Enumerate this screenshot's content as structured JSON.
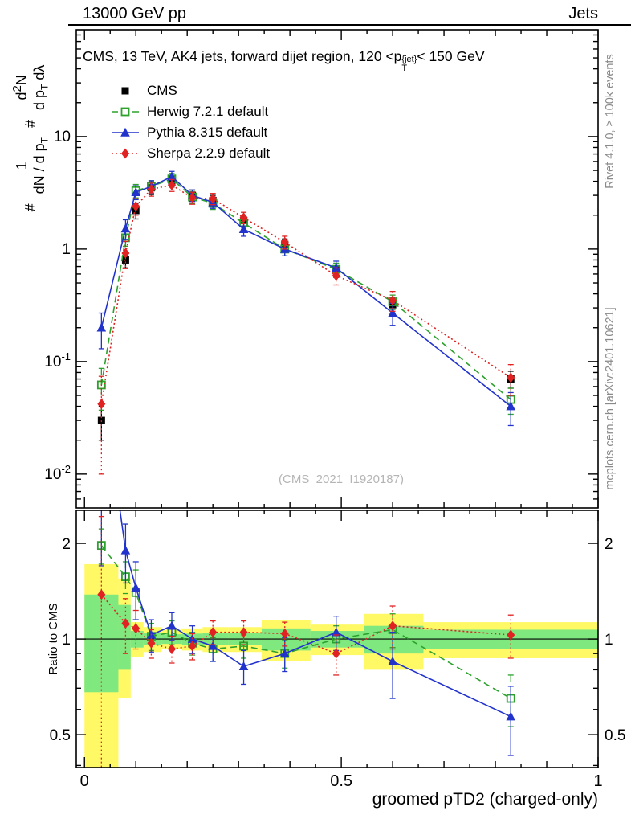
{
  "header": {
    "left": "13000 GeV pp",
    "right": "Jets"
  },
  "title": {
    "prefix": "CMS, 13 TeV, AK4 jets, forward dijet region, 120 <p",
    "sub": "T",
    "sup": "{jet}",
    "suffix": "< 150 GeV"
  },
  "watermark": "(CMS_2021_I1920187)",
  "side_notes": {
    "top_right": "Rivet 4.1.0, ≥ 100k events",
    "bottom_right": "mcplots.cern.ch [arXiv:2401.10621]"
  },
  "main_ylabel": {
    "hash1": "#",
    "frac1_num": "1",
    "frac1_den_pre": "dN / d p",
    "frac1_den_sub": "T",
    "hash2": "#",
    "frac2_num_pre": "d",
    "frac2_num_sup": "2",
    "frac2_num_post": "N",
    "frac2_den_pre": "d p",
    "frac2_den_sub": "T",
    "frac2_den_post": " dλ"
  },
  "ratio_ylabel": "Ratio to CMS",
  "xlabel": "groomed pTD2 (charged-only)",
  "chart_data": [
    {
      "type": "line",
      "panel": "main",
      "ylog": true,
      "xlim": [
        -0.016,
        1.0
      ],
      "ylim": [
        0.005,
        89
      ],
      "xticks": {
        "labels": [
          {
            "v": 0,
            "t": "0"
          },
          {
            "v": 0.5,
            "t": "0.5"
          },
          {
            "v": 1,
            "t": "1"
          }
        ],
        "minor_step": 0.05
      },
      "yticks": [
        {
          "v": 10,
          "t": "10"
        },
        {
          "v": 1,
          "t": "1"
        },
        {
          "v": 0.1,
          "t": "10",
          "sup": "-1"
        },
        {
          "v": 0.01,
          "t": "10",
          "sup": "-2"
        }
      ],
      "x": [
        0.033,
        0.08,
        0.1,
        0.13,
        0.17,
        0.21,
        0.25,
        0.31,
        0.39,
        0.49,
        0.6,
        0.83
      ],
      "series": [
        {
          "name": "CMS",
          "color": "#000000",
          "marker": "square",
          "line": "none",
          "y": [
            0.03,
            0.8,
            2.2,
            3.5,
            4.0,
            3.0,
            2.7,
            1.8,
            1.1,
            0.65,
            0.32,
            0.07
          ],
          "yerr": [
            0.01,
            0.12,
            0.35,
            0.45,
            0.45,
            0.35,
            0.3,
            0.2,
            0.13,
            0.09,
            0.05,
            0.012
          ]
        },
        {
          "name": "Herwig 7.2.1 default",
          "color": "#2ca12c",
          "marker": "open-square",
          "line": "dashed",
          "y": [
            0.062,
            1.26,
            3.3,
            3.6,
            4.2,
            2.9,
            2.55,
            1.7,
            1.0,
            0.66,
            0.34,
            0.046
          ],
          "yerr": [
            0.025,
            0.2,
            0.45,
            0.45,
            0.5,
            0.35,
            0.3,
            0.2,
            0.13,
            0.09,
            0.05,
            0.012
          ]
        },
        {
          "name": "Pythia 8.315 default",
          "color": "#2233cc",
          "marker": "triangle",
          "line": "solid",
          "y": [
            0.2,
            1.52,
            3.2,
            3.6,
            4.4,
            3.0,
            2.6,
            1.5,
            1.0,
            0.68,
            0.27,
            0.04
          ],
          "yerr": [
            0.07,
            0.3,
            0.45,
            0.45,
            0.5,
            0.35,
            0.3,
            0.2,
            0.13,
            0.1,
            0.06,
            0.013
          ]
        },
        {
          "name": "Sherpa 2.2.9 default",
          "color": "#e02222",
          "marker": "diamond",
          "line": "dotted",
          "y": [
            0.042,
            0.92,
            2.4,
            3.4,
            3.7,
            2.85,
            2.8,
            1.9,
            1.15,
            0.58,
            0.35,
            0.072
          ],
          "yerr": [
            0.032,
            0.25,
            0.4,
            0.45,
            0.45,
            0.35,
            0.32,
            0.22,
            0.15,
            0.1,
            0.07,
            0.022
          ]
        }
      ]
    },
    {
      "type": "line",
      "panel": "ratio",
      "ylog": true,
      "xlim": [
        -0.016,
        1.0
      ],
      "ylim": [
        0.394,
        2.54
      ],
      "ref_line": 1,
      "yticks": [
        {
          "v": 0.5,
          "t": "0.5"
        },
        {
          "v": 1,
          "t": "1"
        },
        {
          "v": 2,
          "t": "2"
        }
      ],
      "yticks_minor": [
        0.4,
        0.6,
        0.7,
        0.8,
        0.9
      ],
      "bands": {
        "edges": [
          0,
          0.066,
          0.09,
          0.115,
          0.15,
          0.19,
          0.23,
          0.28,
          0.345,
          0.44,
          0.545,
          0.66,
          1.0
        ],
        "yellow_color": "#fff966",
        "green_color": "#7fe87f",
        "yellow": [
          [
            0.395,
            1.72
          ],
          [
            0.65,
            1.55
          ],
          [
            0.88,
            1.13
          ],
          [
            0.91,
            1.09
          ],
          [
            0.93,
            1.07
          ],
          [
            0.92,
            1.08
          ],
          [
            0.91,
            1.09
          ],
          [
            0.91,
            1.09
          ],
          [
            0.85,
            1.15
          ],
          [
            0.89,
            1.11
          ],
          [
            0.8,
            1.2
          ],
          [
            0.87,
            1.13
          ]
        ],
        "green": [
          [
            0.68,
            1.38
          ],
          [
            0.8,
            1.28
          ],
          [
            0.94,
            1.06
          ],
          [
            0.955,
            1.045
          ],
          [
            0.965,
            1.035
          ],
          [
            0.96,
            1.04
          ],
          [
            0.955,
            1.045
          ],
          [
            0.955,
            1.045
          ],
          [
            0.92,
            1.08
          ],
          [
            0.94,
            1.06
          ],
          [
            0.9,
            1.1
          ],
          [
            0.93,
            1.07
          ]
        ]
      },
      "x": [
        0.033,
        0.08,
        0.1,
        0.13,
        0.17,
        0.21,
        0.25,
        0.31,
        0.39,
        0.49,
        0.6,
        0.83
      ],
      "series": [
        {
          "name": "Herwig 7.2.1 default",
          "color": "#2ca12c",
          "marker": "open-square",
          "line": "dashed",
          "y": [
            1.97,
            1.57,
            1.4,
            1.02,
            1.05,
            0.97,
            0.93,
            0.95,
            0.9,
            1.0,
            1.07,
            0.65
          ],
          "yerr": [
            0.25,
            0.18,
            0.25,
            0.1,
            0.09,
            0.08,
            0.08,
            0.08,
            0.09,
            0.1,
            0.13,
            0.12
          ]
        },
        {
          "name": "Pythia 8.315 default",
          "color": "#2233cc",
          "marker": "triangle",
          "line": "solid",
          "y": [
            6.7,
            1.9,
            1.45,
            1.03,
            1.1,
            1.0,
            0.95,
            0.82,
            0.9,
            1.05,
            0.85,
            0.57
          ],
          "yerr": [
            5.0,
            0.4,
            0.3,
            0.12,
            0.11,
            0.1,
            0.1,
            0.1,
            0.11,
            0.13,
            0.2,
            0.14
          ]
        },
        {
          "name": "Sherpa 2.2.9 default",
          "color": "#e02222",
          "marker": "diamond",
          "line": "dotted",
          "y": [
            1.38,
            1.12,
            1.08,
            0.97,
            0.93,
            0.95,
            1.05,
            1.05,
            1.04,
            0.9,
            1.1,
            1.03
          ],
          "yerr": [
            1.05,
            0.22,
            0.15,
            0.1,
            0.09,
            0.09,
            0.09,
            0.09,
            0.09,
            0.13,
            0.17,
            0.16
          ]
        }
      ]
    }
  ]
}
